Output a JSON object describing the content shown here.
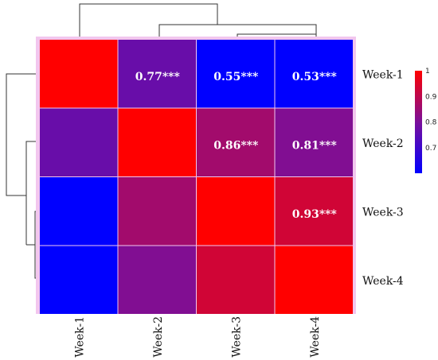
{
  "chart_data": {
    "type": "heatmap",
    "rows": [
      "Week-1",
      "Week-2",
      "Week-3",
      "Week-4"
    ],
    "columns": [
      "Week-1",
      "Week-2",
      "Week-3",
      "Week-4"
    ],
    "values": [
      [
        1.0,
        0.77,
        0.55,
        0.53
      ],
      [
        0.77,
        1.0,
        0.86,
        0.81
      ],
      [
        0.55,
        0.86,
        1.0,
        0.93
      ],
      [
        0.53,
        0.81,
        0.93,
        1.0
      ]
    ],
    "annotations": [
      {
        "row": 0,
        "col": 1,
        "text": "0.77***"
      },
      {
        "row": 0,
        "col": 2,
        "text": "0.55***"
      },
      {
        "row": 0,
        "col": 3,
        "text": "0.53***"
      },
      {
        "row": 1,
        "col": 2,
        "text": "0.86***"
      },
      {
        "row": 1,
        "col": 3,
        "text": "0.81***"
      },
      {
        "row": 2,
        "col": 3,
        "text": "0.93***"
      }
    ],
    "colorbar": {
      "min": 0.6,
      "max": 1.0,
      "ticks": [
        "1",
        "0.9",
        "0.8",
        "0.7"
      ],
      "tick_values": [
        1.0,
        0.9,
        0.8,
        0.7
      ],
      "low_color": "#0000ff",
      "mid_color": "#7a0f9a",
      "high_color": "#ff0000"
    },
    "dendrograms": {
      "rows": true,
      "columns": true
    },
    "title": "",
    "xlabel": "",
    "ylabel": ""
  }
}
